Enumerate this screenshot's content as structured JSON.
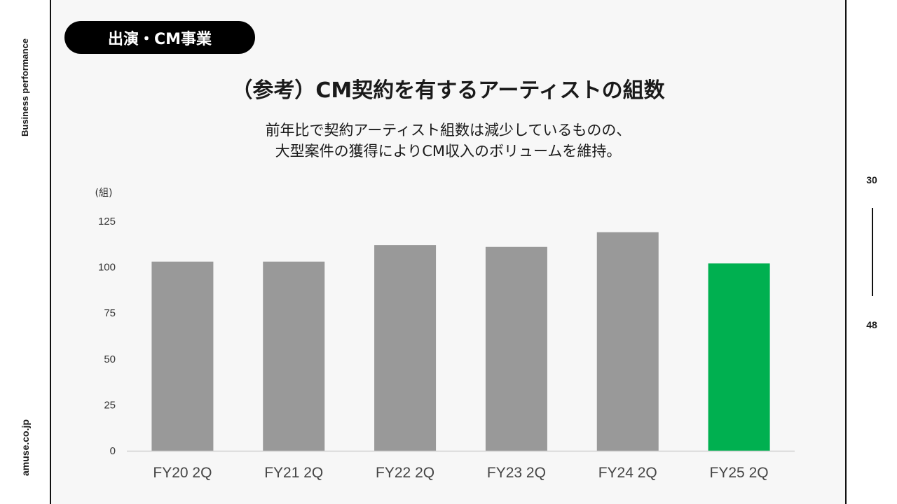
{
  "sidebar": {
    "section": "Business performance",
    "site": "amuse.co.jp"
  },
  "header": {
    "pill": "出演・CM事業"
  },
  "slide": {
    "title": "（参考）CM契約を有するアーティストの組数",
    "subtitle_line1": "前年比で契約アーティスト組数は減少しているものの、",
    "subtitle_line2": "大型案件の獲得によりCM収入のボリュームを維持。"
  },
  "pagination": {
    "current": "30",
    "total": "48"
  },
  "colors": {
    "bar_default": "#999999",
    "bar_highlight": "#00b050",
    "axis": "#d0d0d0"
  },
  "chart_data": {
    "type": "bar",
    "unit_label": "(組)",
    "categories": [
      "FY20 2Q",
      "FY21 2Q",
      "FY22 2Q",
      "FY23 2Q",
      "FY24 2Q",
      "FY25 2Q"
    ],
    "values": [
      103,
      103,
      112,
      111,
      119,
      102
    ],
    "highlight_index": 5,
    "ylim": [
      0,
      125
    ],
    "yticks": [
      0,
      25,
      50,
      75,
      100,
      125
    ],
    "grid": false,
    "legend": "none"
  }
}
